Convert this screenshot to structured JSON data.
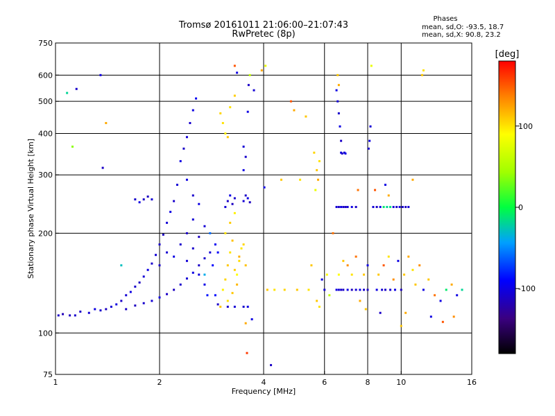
{
  "title_line1": "Tromsø 20161011 21:06:00–21:07:43",
  "title_line2": "RwPretec (8p)",
  "phase_box": {
    "header": "Phases",
    "line1": "mean, sd,O: -93.5, 18.7",
    "line2": "mean, sd,X:  90.8, 23.2"
  },
  "colorbar": {
    "label": "[deg]",
    "tick_labels": [
      "100",
      "0",
      "-100"
    ],
    "ticks": [
      100,
      0,
      -100
    ],
    "range": [
      -180,
      180
    ]
  },
  "chart_data": {
    "type": "scatter",
    "xlabel": "Frequency [MHz]",
    "ylabel": "Stationary phase Virtual Height [km]",
    "xscale": "log",
    "yscale": "log",
    "xlim": [
      1,
      16
    ],
    "ylim": [
      75,
      750
    ],
    "xticks": [
      1,
      2,
      4,
      6,
      8,
      10,
      16
    ],
    "xtick_labels": [
      "1",
      "2",
      "4",
      "6",
      "8",
      "10",
      "16"
    ],
    "yticks": [
      75,
      100,
      200,
      300,
      400,
      500,
      600,
      750
    ],
    "ytick_labels": [
      "75",
      "100",
      "200",
      "300",
      "400",
      "500",
      "600",
      "750"
    ],
    "grid": true,
    "grid_x": [
      2,
      4,
      6,
      8,
      10
    ],
    "grid_y": [
      100,
      200,
      300,
      400,
      500,
      600
    ],
    "points": [
      [
        1.02,
        113,
        -110
      ],
      [
        1.05,
        114,
        -115
      ],
      [
        1.1,
        113,
        -112
      ],
      [
        1.14,
        113,
        -108
      ],
      [
        1.18,
        116,
        -110
      ],
      [
        1.25,
        115,
        -105
      ],
      [
        1.3,
        118,
        -100
      ],
      [
        1.35,
        117,
        -108
      ],
      [
        1.4,
        118,
        -112
      ],
      [
        1.45,
        120,
        -105
      ],
      [
        1.5,
        122,
        -102
      ],
      [
        1.55,
        125,
        -110
      ],
      [
        1.6,
        130,
        -105
      ],
      [
        1.65,
        133,
        -100
      ],
      [
        1.7,
        138,
        -108
      ],
      [
        1.75,
        142,
        -112
      ],
      [
        1.8,
        148,
        -105
      ],
      [
        1.85,
        155,
        -100
      ],
      [
        1.9,
        162,
        -108
      ],
      [
        1.95,
        172,
        -105
      ],
      [
        2.0,
        185,
        -110
      ],
      [
        2.05,
        198,
        -112
      ],
      [
        2.1,
        215,
        -105
      ],
      [
        2.15,
        232,
        -100
      ],
      [
        2.2,
        250,
        -108
      ],
      [
        2.25,
        280,
        -105
      ],
      [
        2.3,
        330,
        -100
      ],
      [
        2.35,
        360,
        -110
      ],
      [
        2.4,
        390,
        -105
      ],
      [
        2.45,
        430,
        -108
      ],
      [
        2.5,
        470,
        -100
      ],
      [
        2.55,
        510,
        -95
      ],
      [
        1.6,
        118,
        -110
      ],
      [
        1.7,
        121,
        -112
      ],
      [
        1.8,
        123,
        -108
      ],
      [
        1.9,
        125,
        -105
      ],
      [
        2.0,
        128,
        -100
      ],
      [
        2.1,
        131,
        -110
      ],
      [
        2.2,
        135,
        -112
      ],
      [
        2.3,
        140,
        -108
      ],
      [
        2.4,
        146,
        -105
      ],
      [
        2.5,
        152,
        -100
      ],
      [
        2.6,
        160,
        -110
      ],
      [
        2.7,
        168,
        -108
      ],
      [
        2.8,
        175,
        -105
      ],
      [
        2.2,
        170,
        -100
      ],
      [
        2.3,
        185,
        -108
      ],
      [
        2.4,
        200,
        -110
      ],
      [
        2.5,
        220,
        -105
      ],
      [
        2.6,
        245,
        -100
      ],
      [
        2.5,
        180,
        -108
      ],
      [
        2.6,
        195,
        -112
      ],
      [
        2.7,
        210,
        -105
      ],
      [
        2.0,
        160,
        -110
      ],
      [
        2.1,
        175,
        -106
      ],
      [
        2.4,
        165,
        -104
      ],
      [
        2.6,
        150,
        -102
      ],
      [
        2.7,
        140,
        -98
      ],
      [
        2.5,
        260,
        -108
      ],
      [
        2.4,
        290,
        -100
      ],
      [
        1.7,
        253,
        -108
      ],
      [
        1.8,
        253,
        -110
      ],
      [
        1.9,
        253,
        -105
      ],
      [
        1.75,
        248,
        -100
      ],
      [
        1.85,
        258,
        -112
      ],
      [
        2.9,
        185,
        -95
      ],
      [
        2.95,
        175,
        -92
      ],
      [
        2.85,
        160,
        -90
      ],
      [
        2.9,
        130,
        -88
      ],
      [
        2.95,
        122,
        -110
      ],
      [
        2.8,
        200,
        -60
      ],
      [
        2.7,
        150,
        -40
      ],
      [
        2.75,
        130,
        -85
      ],
      [
        1.15,
        545,
        -108
      ],
      [
        1.08,
        530,
        -20
      ],
      [
        1.35,
        600,
        -100
      ],
      [
        1.37,
        315,
        -110
      ],
      [
        1.4,
        430,
        120
      ],
      [
        1.12,
        365,
        40
      ],
      [
        1.55,
        160,
        -30
      ],
      [
        3.0,
        120,
        110
      ],
      [
        3.05,
        135,
        95
      ],
      [
        3.1,
        145,
        105
      ],
      [
        3.15,
        160,
        110
      ],
      [
        3.2,
        175,
        100
      ],
      [
        3.25,
        190,
        112
      ],
      [
        3.3,
        155,
        108
      ],
      [
        3.35,
        140,
        115
      ],
      [
        3.4,
        165,
        102
      ],
      [
        3.45,
        180,
        98
      ],
      [
        3.1,
        200,
        100
      ],
      [
        3.2,
        215,
        108
      ],
      [
        3.3,
        230,
        95
      ],
      [
        3.15,
        125,
        100
      ],
      [
        3.25,
        132,
        110
      ],
      [
        3.35,
        150,
        90
      ],
      [
        3.4,
        170,
        118
      ],
      [
        3.5,
        185,
        105
      ],
      [
        3.55,
        160,
        112
      ],
      [
        3.0,
        460,
        105
      ],
      [
        3.05,
        430,
        100
      ],
      [
        3.1,
        400,
        95
      ],
      [
        3.15,
        390,
        110
      ],
      [
        3.2,
        480,
        100
      ],
      [
        3.3,
        520,
        108
      ],
      [
        3.35,
        610,
        -100
      ],
      [
        3.3,
        640,
        150
      ],
      [
        3.1,
        240,
        -105
      ],
      [
        3.15,
        250,
        -110
      ],
      [
        3.2,
        260,
        -100
      ],
      [
        3.25,
        245,
        -112
      ],
      [
        3.3,
        255,
        -108
      ],
      [
        3.5,
        250,
        -105
      ],
      [
        3.55,
        260,
        -110
      ],
      [
        3.6,
        255,
        -100
      ],
      [
        3.65,
        248,
        -112
      ],
      [
        3.5,
        310,
        -100
      ],
      [
        3.55,
        340,
        -108
      ],
      [
        3.5,
        365,
        -105
      ],
      [
        3.15,
        120,
        -110
      ],
      [
        3.3,
        120,
        -105
      ],
      [
        3.5,
        120,
        -108
      ],
      [
        3.6,
        120,
        -100
      ],
      [
        3.55,
        107,
        120
      ],
      [
        3.7,
        110,
        -100
      ],
      [
        3.58,
        87,
        160
      ],
      [
        3.6,
        465,
        -100
      ],
      [
        3.62,
        560,
        -110
      ],
      [
        3.75,
        540,
        -105
      ],
      [
        3.65,
        600,
        60
      ],
      [
        4.02,
        275,
        -100
      ],
      [
        3.95,
        620,
        120
      ],
      [
        4.05,
        640,
        80
      ],
      [
        4.2,
        80,
        -110
      ],
      [
        4.1,
        135,
        110
      ],
      [
        4.3,
        135,
        100
      ],
      [
        4.5,
        290,
        110
      ],
      [
        4.6,
        135,
        105
      ],
      [
        4.8,
        500,
        150
      ],
      [
        4.9,
        470,
        120
      ],
      [
        5.0,
        135,
        110
      ],
      [
        5.1,
        290,
        100
      ],
      [
        5.3,
        450,
        110
      ],
      [
        5.4,
        135,
        100
      ],
      [
        5.5,
        160,
        110
      ],
      [
        5.6,
        350,
        105
      ],
      [
        5.7,
        310,
        110
      ],
      [
        5.75,
        290,
        120
      ],
      [
        5.8,
        330,
        100
      ],
      [
        5.65,
        270,
        80
      ],
      [
        5.7,
        125,
        110
      ],
      [
        5.8,
        120,
        100
      ],
      [
        5.9,
        145,
        -100
      ],
      [
        6.0,
        135,
        -105
      ],
      [
        6.1,
        150,
        90
      ],
      [
        6.2,
        130,
        60
      ],
      [
        6.35,
        200,
        140
      ],
      [
        6.5,
        540,
        -100
      ],
      [
        6.55,
        500,
        -105
      ],
      [
        6.6,
        460,
        -108
      ],
      [
        6.65,
        420,
        -100
      ],
      [
        6.7,
        380,
        -110
      ],
      [
        6.55,
        600,
        110
      ],
      [
        6.6,
        560,
        120
      ],
      [
        6.7,
        350,
        -100
      ],
      [
        6.75,
        348,
        -110
      ],
      [
        6.85,
        350,
        -105
      ],
      [
        6.9,
        348,
        -100
      ],
      [
        6.5,
        240,
        -105
      ],
      [
        6.6,
        240,
        -110
      ],
      [
        6.7,
        240,
        -100
      ],
      [
        6.8,
        240,
        -108
      ],
      [
        6.9,
        240,
        -112
      ],
      [
        7.0,
        240,
        -105
      ],
      [
        7.2,
        240,
        -100
      ],
      [
        7.4,
        240,
        -110
      ],
      [
        6.5,
        135,
        -100
      ],
      [
        6.6,
        135,
        -105
      ],
      [
        6.7,
        135,
        -108
      ],
      [
        6.8,
        135,
        -110
      ],
      [
        7.0,
        135,
        -100
      ],
      [
        7.2,
        135,
        -112
      ],
      [
        7.4,
        135,
        -105
      ],
      [
        7.6,
        135,
        -100
      ],
      [
        7.8,
        135,
        -108
      ],
      [
        8.0,
        135,
        -110
      ],
      [
        6.6,
        150,
        90
      ],
      [
        6.8,
        165,
        110
      ],
      [
        7.0,
        160,
        130
      ],
      [
        7.2,
        150,
        100
      ],
      [
        7.4,
        170,
        140
      ],
      [
        7.6,
        125,
        120
      ],
      [
        7.8,
        150,
        110
      ],
      [
        8.0,
        160,
        -100
      ],
      [
        8.1,
        380,
        -100
      ],
      [
        8.15,
        420,
        -105
      ],
      [
        8.05,
        360,
        -110
      ],
      [
        8.2,
        640,
        80
      ],
      [
        8.3,
        240,
        -105
      ],
      [
        8.5,
        240,
        -110
      ],
      [
        8.7,
        240,
        -100
      ],
      [
        8.9,
        240,
        -10
      ],
      [
        9.1,
        240,
        -20
      ],
      [
        9.3,
        240,
        -15
      ],
      [
        9.5,
        240,
        -105
      ],
      [
        9.7,
        240,
        -110
      ],
      [
        9.9,
        240,
        -100
      ],
      [
        10.1,
        240,
        -108
      ],
      [
        10.3,
        240,
        -112
      ],
      [
        10.5,
        240,
        -105
      ],
      [
        8.5,
        135,
        -100
      ],
      [
        8.8,
        135,
        -105
      ],
      [
        9.0,
        135,
        -110
      ],
      [
        9.3,
        135,
        -108
      ],
      [
        9.6,
        135,
        -100
      ],
      [
        10.0,
        135,
        -112
      ],
      [
        8.6,
        150,
        110
      ],
      [
        8.9,
        160,
        150
      ],
      [
        9.2,
        170,
        100
      ],
      [
        9.5,
        145,
        130
      ],
      [
        9.8,
        165,
        -100
      ],
      [
        10.2,
        150,
        110
      ],
      [
        10.5,
        170,
        120
      ],
      [
        10.8,
        155,
        100
      ],
      [
        11.0,
        140,
        110
      ],
      [
        11.3,
        160,
        130
      ],
      [
        11.6,
        135,
        -100
      ],
      [
        12.0,
        145,
        110
      ],
      [
        12.5,
        130,
        140
      ],
      [
        13.0,
        125,
        -100
      ],
      [
        13.5,
        135,
        -10
      ],
      [
        14.0,
        140,
        120
      ],
      [
        14.5,
        130,
        -100
      ],
      [
        15.0,
        135,
        -20
      ],
      [
        11.5,
        600,
        110
      ],
      [
        11.6,
        620,
        100
      ],
      [
        10.8,
        290,
        120
      ],
      [
        9.0,
        280,
        -100
      ],
      [
        8.4,
        270,
        150
      ],
      [
        7.5,
        270,
        140
      ],
      [
        10.0,
        105,
        110
      ],
      [
        10.3,
        115,
        120
      ],
      [
        12.2,
        112,
        -100
      ],
      [
        13.2,
        108,
        150
      ],
      [
        14.2,
        112,
        130
      ],
      [
        8.7,
        115,
        -110
      ],
      [
        7.9,
        118,
        110
      ],
      [
        9.2,
        260,
        120
      ]
    ]
  }
}
